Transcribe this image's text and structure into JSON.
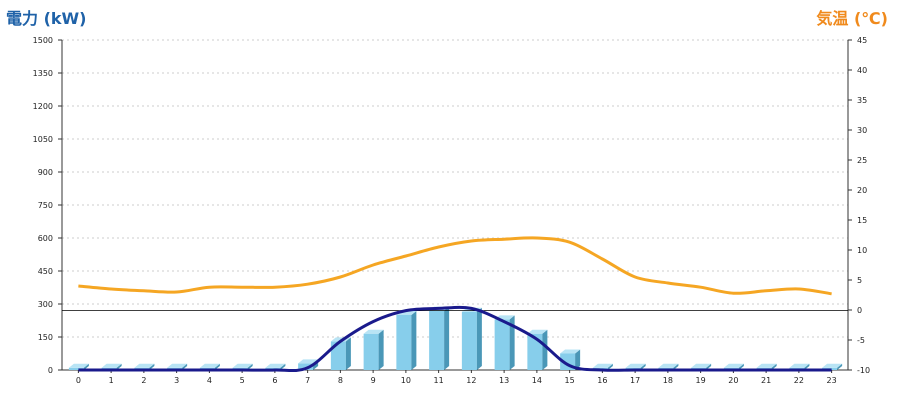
{
  "chart_data": {
    "type": "bar+line",
    "left_axis": {
      "title": "電力 (kW)",
      "min": 0,
      "max": 1500,
      "ticks": [
        0,
        150,
        300,
        450,
        600,
        750,
        900,
        1050,
        1200,
        1350,
        1500
      ]
    },
    "right_axis": {
      "title": "気温 (℃)",
      "min": -10,
      "max": 45,
      "ticks": [
        -10,
        -5,
        0,
        5,
        10,
        15,
        20,
        25,
        30,
        35,
        40,
        45
      ]
    },
    "categories": [
      "0",
      "1",
      "2",
      "3",
      "4",
      "5",
      "6",
      "7",
      "8",
      "9",
      "10",
      "11",
      "12",
      "13",
      "14",
      "15",
      "16",
      "17",
      "18",
      "19",
      "20",
      "21",
      "22",
      "23"
    ],
    "bar_values": [
      10,
      10,
      10,
      10,
      10,
      10,
      10,
      30,
      130,
      165,
      250,
      270,
      265,
      230,
      165,
      75,
      10,
      10,
      10,
      10,
      10,
      10,
      10,
      10
    ],
    "navy_line_values": [
      0,
      0,
      0,
      0,
      0,
      0,
      0,
      10,
      130,
      220,
      270,
      280,
      280,
      220,
      140,
      20,
      0,
      0,
      0,
      0,
      0,
      0,
      0,
      0
    ],
    "temperature_values": [
      4,
      3.5,
      3.2,
      3,
      3.8,
      3.8,
      3.8,
      4.3,
      5.5,
      7.5,
      9,
      10.5,
      11.5,
      11.8,
      12,
      11.3,
      8.5,
      5.5,
      4.5,
      3.8,
      2.8,
      3.2,
      3.5,
      2.7
    ],
    "reference_line_kw": 270,
    "grid": true,
    "colors": {
      "bar": "#87ceeb",
      "bar_side": "#4a97b7",
      "navy_line": "#1a1a8c",
      "temp_line": "#f5a623",
      "left_title": "#1f62a8",
      "right_title": "#f08a1c"
    }
  }
}
